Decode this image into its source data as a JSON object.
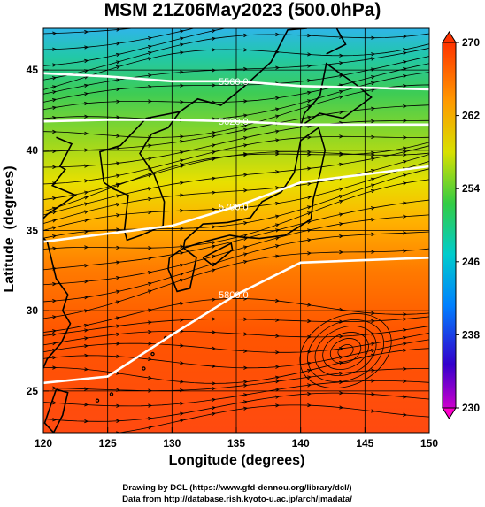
{
  "title": "MSM 21Z06May2023 (500.0hPa)",
  "axes": {
    "xlabel": "Longitude (degrees)",
    "ylabel": "Latitude  (degrees)",
    "xticks": [
      "120",
      "125",
      "130",
      "135",
      "140",
      "145",
      "150"
    ],
    "yticks": [
      "45",
      "40",
      "35",
      "30",
      "25"
    ],
    "xlim": [
      120,
      150
    ],
    "ylim": [
      22.4,
      47.6
    ]
  },
  "colorbar": {
    "labels": [
      "270",
      "262",
      "254",
      "246",
      "238",
      "230"
    ],
    "min": 230,
    "max": 270,
    "colors": [
      "#cc00cc",
      "#0000cc",
      "#0099ff",
      "#00ccaa",
      "#33cc33",
      "#ccdd00",
      "#ffaa00",
      "#ff4400"
    ]
  },
  "contours": [
    {
      "label": "5560.0",
      "lat": [
        44.8,
        44.6,
        44.3,
        44.3,
        44.0,
        43.8
      ]
    },
    {
      "label": "5620.0",
      "lat": [
        41.8,
        41.9,
        41.9,
        41.8,
        41.6,
        41.6
      ]
    },
    {
      "label": "5700.0",
      "lat": [
        34.3,
        34.8,
        35.3,
        36.5,
        38.0,
        39.0
      ]
    },
    {
      "label": "5800.0",
      "lat": [
        25.5,
        25.9,
        28.5,
        31.0,
        33.0,
        33.3
      ]
    }
  ],
  "contour_lon": [
    120,
    125,
    130,
    135,
    140,
    150
  ],
  "credits": [
    "Drawing by DCL (https://www.gfd-dennou.org/library/dcl/)",
    "Data from http://database.rish.kyoto-u.ac.jp/arch/jmadata/"
  ]
}
